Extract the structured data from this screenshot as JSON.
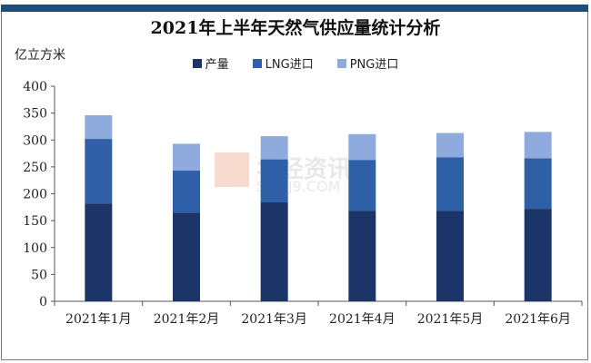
{
  "chart_data": {
    "type": "bar",
    "stacked": true,
    "title": "2021年上半年天然气供应量统计分析",
    "ylabel": "亿立方米",
    "ylim": [
      0,
      400
    ],
    "yticks": [
      0,
      50,
      100,
      150,
      200,
      250,
      300,
      350,
      400
    ],
    "categories": [
      "2021年1月",
      "2021年2月",
      "2021年3月",
      "2021年4月",
      "2021年5月",
      "2021年6月"
    ],
    "series": [
      {
        "name": "产量",
        "color": "#1c3568",
        "values": [
          182,
          165,
          184,
          168,
          168,
          172
        ]
      },
      {
        "name": "LNG进口",
        "color": "#2f5fa7",
        "values": [
          120,
          78,
          80,
          95,
          100,
          94
        ]
      },
      {
        "name": "PNG进口",
        "color": "#8faadc",
        "values": [
          44,
          50,
          43,
          48,
          45,
          49
        ]
      }
    ],
    "legend_position": "top-center",
    "grid": false
  },
  "watermark": {
    "text": "华经资讯",
    "subtext": "SOHJ9.COM"
  }
}
